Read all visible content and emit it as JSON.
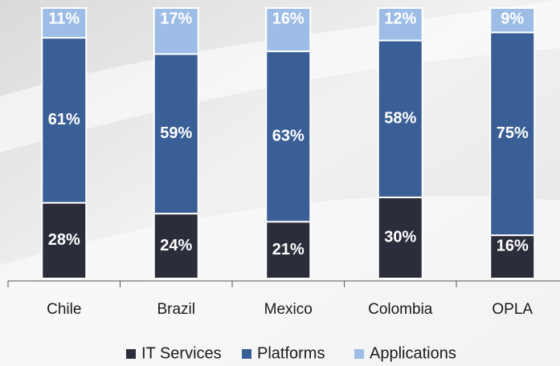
{
  "chart_data": {
    "type": "stacked-bar",
    "categories": [
      "Chile",
      "Brazil",
      "Mexico",
      "Colombia",
      "OPLA"
    ],
    "ylim": [
      0,
      100
    ],
    "series": [
      {
        "name": "IT Services",
        "color": "#2b2d3a",
        "values": [
          28,
          24,
          21,
          30,
          16
        ],
        "value_labels": [
          "28%",
          "24%",
          "21%",
          "30%",
          "16%"
        ]
      },
      {
        "name": "Platforms",
        "color": "#3a5f96",
        "values": [
          61,
          59,
          63,
          58,
          75
        ],
        "value_labels": [
          "61%",
          "59%",
          "63%",
          "58%",
          "75%"
        ]
      },
      {
        "name": "Applications",
        "color": "#9dbde6",
        "values": [
          11,
          17,
          16,
          12,
          9
        ],
        "value_labels": [
          "11%",
          "17%",
          "16%",
          "12%",
          "9%"
        ]
      }
    ]
  }
}
